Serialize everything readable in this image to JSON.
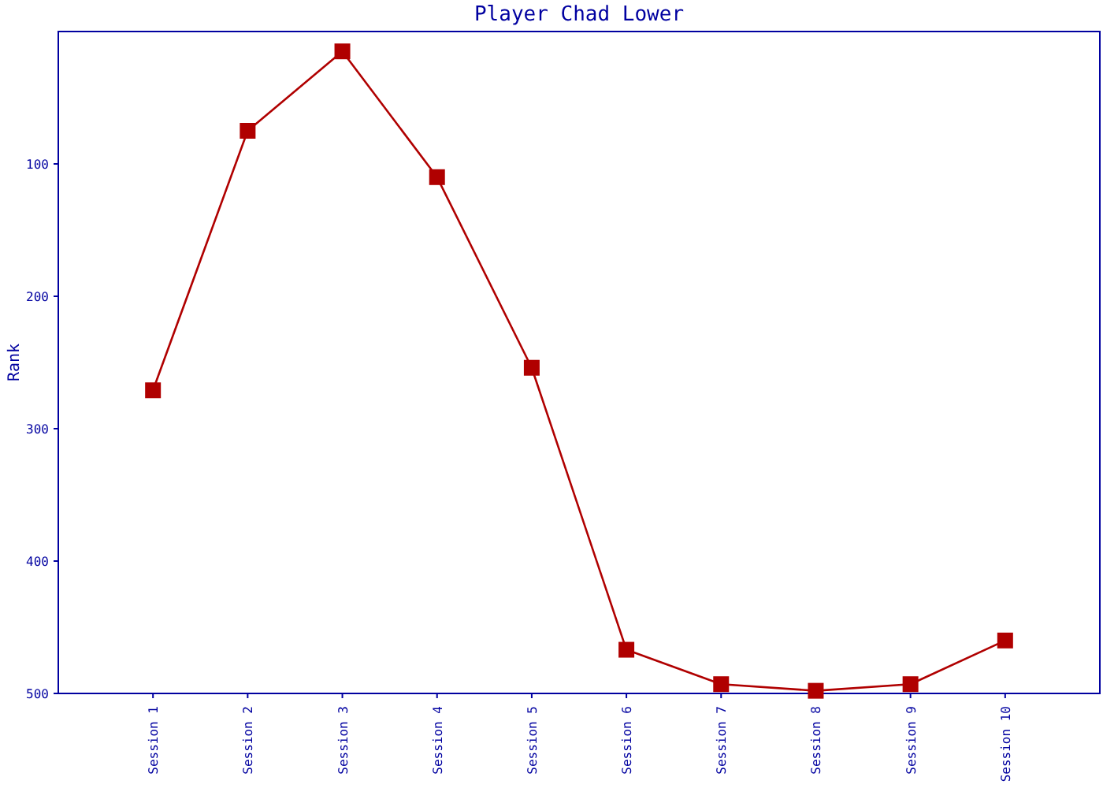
{
  "chart_data": {
    "type": "line",
    "title": "Player Chad Lower",
    "ylabel": "Rank",
    "categories": [
      "Session 1",
      "Session 2",
      "Session 3",
      "Session 4",
      "Session 5",
      "Session 6",
      "Session 7",
      "Session 8",
      "Session 9",
      "Session 10"
    ],
    "series": [
      {
        "color": "#b00000",
        "values": [
          271,
          75,
          15,
          110,
          254,
          467,
          493,
          498,
          493,
          460
        ]
      }
    ],
    "ylim": [
      500,
      0
    ],
    "yticks": [
      100,
      200,
      300,
      400,
      500
    ],
    "marker": "square",
    "line_style": "solid"
  }
}
